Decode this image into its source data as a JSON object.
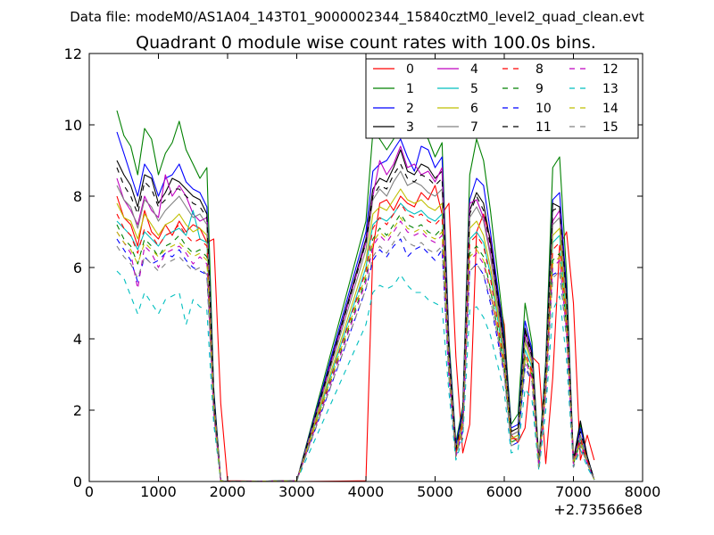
{
  "chart_data": {
    "type": "line",
    "suptitle": "Data file: modeM0/AS1A04_143T01_9000002344_15840cztM0_level2_quad_clean.evt",
    "title": "Quadrant 0 module wise count rates with 100.0s bins.",
    "xlabel": "",
    "ylabel": "",
    "x_offset_label": "+2.73566e8",
    "xlim": [
      0,
      8000
    ],
    "ylim": [
      0,
      12
    ],
    "xticks": [
      0,
      1000,
      2000,
      3000,
      4000,
      5000,
      6000,
      7000,
      8000
    ],
    "yticks": [
      0,
      2,
      4,
      6,
      8,
      10,
      12
    ],
    "x": [
      400,
      500,
      600,
      700,
      800,
      900,
      1000,
      1100,
      1200,
      1300,
      1400,
      1500,
      1600,
      1700,
      1800,
      1900,
      2000,
      3000,
      4000,
      4100,
      4200,
      4300,
      4400,
      4500,
      4600,
      4700,
      4800,
      4900,
      5000,
      5100,
      5200,
      5300,
      5400,
      5500,
      5600,
      5700,
      5800,
      5900,
      6000,
      6100,
      6200,
      6300,
      6400,
      6500,
      6600,
      6700,
      6800,
      6900,
      7000,
      7100,
      7200,
      7300
    ],
    "series": [
      {
        "name": "0",
        "color": "#ff0000",
        "dash": "solid",
        "values": [
          8.0,
          7.4,
          7.2,
          6.6,
          7.6,
          7.0,
          6.8,
          7.2,
          6.9,
          7.3,
          7.0,
          7.2,
          7.1,
          6.7,
          6.8,
          2.2,
          0.02,
          0.0,
          0.02,
          6.5,
          7.8,
          7.9,
          7.6,
          8.0,
          7.8,
          7.7,
          8.1,
          7.9,
          8.3,
          7.5,
          7.8,
          3.5,
          0.8,
          1.6,
          7.0,
          7.5,
          6.8,
          5.3,
          4.4,
          1.3,
          1.1,
          1.5,
          3.5,
          3.3,
          0.5,
          2.9,
          6.6,
          7.0,
          5.0,
          0.6,
          1.3,
          0.6
        ]
      },
      {
        "name": "1",
        "color": "#008000",
        "dash": "solid",
        "values": [
          10.4,
          9.7,
          9.4,
          8.6,
          9.9,
          9.6,
          8.6,
          9.2,
          9.5,
          10.1,
          9.3,
          8.9,
          8.5,
          8.8,
          2.6,
          0.02,
          0.0,
          0.02,
          7.3,
          9.8,
          9.6,
          9.3,
          9.6,
          10.3,
          9.8,
          10.3,
          9.8,
          9.6,
          9.1,
          9.5,
          4.0,
          1.1,
          2.1,
          8.6,
          9.6,
          9.0,
          7.6,
          5.9,
          4.2,
          1.6,
          1.9,
          5.0,
          3.9,
          0.6,
          3.4,
          8.8,
          9.1,
          5.8,
          0.6,
          1.6,
          0.7,
          0.05
        ]
      },
      {
        "name": "2",
        "color": "#0000ff",
        "dash": "solid",
        "values": [
          9.8,
          9.2,
          8.6,
          8.0,
          8.9,
          8.6,
          8.0,
          8.5,
          8.6,
          8.9,
          8.4,
          8.2,
          8.1,
          7.7,
          2.5,
          0.02,
          0.0,
          0.02,
          7.0,
          8.7,
          8.9,
          9.0,
          9.3,
          9.6,
          9.1,
          8.7,
          9.4,
          9.3,
          8.8,
          9.1,
          3.8,
          1.0,
          2.0,
          7.9,
          8.5,
          8.3,
          7.0,
          5.5,
          4.0,
          1.5,
          1.6,
          4.5,
          3.7,
          0.5,
          3.2,
          7.9,
          8.1,
          5.4,
          0.6,
          1.5,
          0.7,
          0.05
        ]
      },
      {
        "name": "3",
        "color": "#000000",
        "dash": "solid",
        "values": [
          9.0,
          8.6,
          8.3,
          7.7,
          8.6,
          8.5,
          7.8,
          8.1,
          8.5,
          8.4,
          8.2,
          8.0,
          7.9,
          7.5,
          2.4,
          0.02,
          0.0,
          0.02,
          6.8,
          8.2,
          8.5,
          8.4,
          8.8,
          9.3,
          8.7,
          8.6,
          8.9,
          8.8,
          8.5,
          8.7,
          3.7,
          0.9,
          1.9,
          7.6,
          8.1,
          7.8,
          6.7,
          5.3,
          3.9,
          1.4,
          1.5,
          4.3,
          3.6,
          0.5,
          3.1,
          7.8,
          7.7,
          5.2,
          0.6,
          1.7,
          0.7,
          0.05
        ]
      },
      {
        "name": "4",
        "color": "#bf00bf",
        "dash": "solid",
        "values": [
          8.5,
          7.9,
          7.6,
          7.2,
          8.0,
          7.6,
          7.4,
          8.6,
          8.0,
          8.3,
          8.0,
          7.5,
          7.3,
          7.4,
          2.3,
          0.02,
          0.0,
          0.02,
          6.7,
          8.0,
          9.0,
          8.6,
          8.9,
          9.4,
          8.8,
          8.9,
          8.6,
          8.7,
          8.4,
          8.8,
          3.6,
          0.9,
          1.8,
          7.8,
          7.9,
          7.4,
          6.4,
          5.1,
          3.7,
          1.3,
          1.4,
          4.1,
          3.5,
          0.5,
          3.0,
          7.3,
          7.6,
          5.0,
          0.6,
          1.3,
          0.6,
          0.05
        ]
      },
      {
        "name": "5",
        "color": "#00bfbf",
        "dash": "solid",
        "values": [
          7.3,
          7.1,
          6.9,
          6.5,
          7.0,
          6.8,
          6.6,
          6.9,
          7.0,
          7.1,
          6.9,
          7.6,
          6.8,
          6.7,
          2.1,
          0.02,
          0.0,
          0.02,
          6.0,
          7.2,
          7.4,
          7.3,
          7.5,
          7.8,
          7.6,
          7.5,
          7.6,
          7.4,
          7.3,
          7.5,
          3.3,
          0.8,
          1.6,
          6.8,
          7.0,
          6.7,
          5.8,
          4.6,
          3.4,
          1.2,
          1.3,
          3.7,
          3.2,
          0.4,
          2.8,
          6.7,
          6.9,
          4.6,
          0.5,
          1.2,
          0.6,
          0.05
        ]
      },
      {
        "name": "6",
        "color": "#bfbf00",
        "dash": "solid",
        "values": [
          7.8,
          7.4,
          7.3,
          6.8,
          7.5,
          7.2,
          6.9,
          7.2,
          7.3,
          7.5,
          7.2,
          7.0,
          7.1,
          6.9,
          2.2,
          0.02,
          0.0,
          0.02,
          6.2,
          7.5,
          7.7,
          7.6,
          7.9,
          8.2,
          7.9,
          7.8,
          7.9,
          7.7,
          7.6,
          7.8,
          3.4,
          0.8,
          1.7,
          7.1,
          7.3,
          6.9,
          6.0,
          4.8,
          3.5,
          1.2,
          1.3,
          3.9,
          3.3,
          0.5,
          2.9,
          6.9,
          7.1,
          4.8,
          0.5,
          1.3,
          0.6,
          0.05
        ]
      },
      {
        "name": "7",
        "color": "#808080",
        "dash": "solid",
        "values": [
          8.3,
          7.9,
          7.7,
          7.1,
          7.9,
          7.7,
          7.3,
          7.6,
          7.8,
          8.0,
          7.7,
          7.4,
          7.5,
          7.2,
          2.3,
          0.02,
          0.0,
          0.02,
          6.5,
          7.9,
          8.2,
          8.0,
          8.4,
          8.7,
          8.3,
          8.4,
          8.3,
          8.1,
          8.0,
          8.2,
          3.5,
          0.9,
          1.8,
          7.4,
          7.7,
          7.3,
          6.3,
          5.0,
          3.6,
          1.3,
          1.4,
          4.0,
          3.4,
          0.5,
          3.0,
          7.2,
          7.4,
          5.0,
          0.5,
          1.3,
          0.6,
          0.05
        ]
      },
      {
        "name": "8",
        "color": "#ff0000",
        "dash": "dashed",
        "values": [
          7.5,
          7.1,
          6.9,
          6.4,
          7.1,
          6.9,
          6.6,
          6.9,
          7.0,
          7.2,
          6.9,
          6.7,
          6.8,
          6.6,
          2.1,
          0.02,
          0.0,
          0.02,
          5.9,
          7.1,
          7.4,
          7.2,
          7.5,
          7.8,
          7.5,
          7.4,
          7.5,
          7.3,
          7.2,
          7.4,
          3.2,
          0.8,
          1.6,
          6.7,
          6.9,
          6.6,
          5.7,
          4.5,
          3.3,
          1.2,
          1.2,
          3.6,
          3.1,
          0.4,
          2.7,
          6.5,
          6.7,
          4.5,
          0.5,
          1.2,
          0.6,
          0.05
        ]
      },
      {
        "name": "9",
        "color": "#008000",
        "dash": "dashed",
        "values": [
          7.2,
          6.8,
          6.6,
          6.1,
          6.8,
          6.6,
          6.3,
          6.6,
          6.7,
          6.9,
          6.6,
          6.4,
          6.5,
          6.3,
          2.0,
          0.02,
          0.0,
          0.02,
          5.7,
          6.8,
          7.1,
          6.9,
          7.2,
          7.5,
          7.2,
          7.1,
          7.2,
          7.0,
          6.9,
          7.1,
          3.1,
          0.7,
          1.5,
          6.4,
          6.6,
          6.3,
          5.4,
          4.3,
          3.2,
          1.1,
          1.2,
          3.5,
          3.0,
          0.4,
          2.6,
          6.2,
          6.4,
          4.3,
          0.5,
          1.1,
          0.5,
          0.05
        ]
      },
      {
        "name": "10",
        "color": "#0000ff",
        "dash": "dashed",
        "values": [
          6.8,
          6.5,
          6.2,
          5.6,
          6.3,
          6.1,
          6.2,
          6.4,
          6.3,
          6.5,
          6.2,
          6.0,
          5.9,
          5.8,
          1.9,
          0.02,
          0.0,
          0.02,
          5.4,
          6.2,
          6.5,
          6.3,
          6.6,
          6.8,
          6.3,
          6.5,
          6.6,
          6.4,
          6.2,
          6.5,
          2.9,
          0.7,
          1.4,
          5.9,
          6.1,
          5.8,
          5.0,
          4.0,
          3.0,
          1.0,
          1.1,
          3.2,
          2.8,
          0.4,
          2.4,
          5.8,
          5.9,
          4.0,
          0.4,
          1.0,
          0.5,
          0.05
        ]
      },
      {
        "name": "11",
        "color": "#000000",
        "dash": "dashed",
        "values": [
          8.8,
          8.3,
          8.0,
          7.5,
          8.4,
          8.2,
          7.7,
          7.9,
          8.2,
          8.2,
          8.0,
          7.8,
          7.7,
          7.4,
          2.4,
          0.02,
          0.0,
          0.02,
          6.7,
          8.0,
          8.3,
          8.2,
          8.6,
          8.9,
          8.5,
          8.4,
          8.6,
          8.5,
          8.3,
          8.5,
          3.6,
          0.9,
          1.9,
          7.5,
          8.0,
          7.6,
          6.6,
          5.2,
          3.8,
          1.4,
          1.5,
          4.2,
          3.5,
          0.5,
          3.1,
          7.6,
          7.7,
          5.1,
          0.6,
          1.4,
          0.7,
          0.05
        ]
      },
      {
        "name": "12",
        "color": "#bf00bf",
        "dash": "dashed",
        "values": [
          7.0,
          6.7,
          6.4,
          5.4,
          6.6,
          6.4,
          6.0,
          6.4,
          6.5,
          6.6,
          6.4,
          6.1,
          6.3,
          6.1,
          1.9,
          0.02,
          0.0,
          0.02,
          5.6,
          6.6,
          6.9,
          6.7,
          7.0,
          7.3,
          7.0,
          6.9,
          7.0,
          6.8,
          6.7,
          6.9,
          3.0,
          0.7,
          1.5,
          6.2,
          6.4,
          6.1,
          5.3,
          4.2,
          3.1,
          1.1,
          1.2,
          3.4,
          2.9,
          0.4,
          2.5,
          6.0,
          6.2,
          4.2,
          0.5,
          1.1,
          0.5,
          0.05
        ]
      },
      {
        "name": "13",
        "color": "#00bfbf",
        "dash": "dashed",
        "values": [
          5.9,
          5.7,
          5.2,
          4.7,
          5.3,
          5.0,
          4.7,
          5.1,
          5.2,
          5.3,
          4.4,
          5.1,
          4.9,
          4.8,
          1.6,
          0.02,
          0.0,
          0.02,
          4.4,
          5.3,
          5.5,
          5.4,
          5.5,
          5.8,
          5.5,
          5.3,
          5.3,
          5.1,
          5.0,
          4.9,
          2.5,
          0.6,
          1.2,
          4.8,
          4.9,
          4.6,
          4.1,
          3.3,
          2.5,
          0.8,
          0.9,
          2.6,
          2.3,
          0.3,
          2.0,
          4.8,
          5.2,
          3.4,
          0.4,
          0.9,
          0.4,
          0.05
        ]
      },
      {
        "name": "14",
        "color": "#bfbf00",
        "dash": "dashed",
        "values": [
          7.0,
          6.7,
          6.5,
          6.1,
          6.7,
          6.5,
          6.3,
          6.5,
          6.6,
          6.7,
          6.5,
          6.3,
          6.4,
          6.2,
          2.0,
          0.02,
          0.0,
          0.02,
          5.8,
          6.7,
          7.0,
          6.8,
          7.1,
          7.4,
          7.1,
          7.0,
          7.1,
          6.9,
          6.8,
          7.0,
          3.1,
          0.7,
          1.5,
          6.3,
          6.5,
          6.2,
          5.4,
          4.3,
          3.2,
          1.1,
          1.2,
          3.5,
          3.0,
          0.4,
          2.6,
          6.1,
          6.3,
          4.3,
          0.5,
          1.1,
          0.5,
          0.05
        ]
      },
      {
        "name": "15",
        "color": "#808080",
        "dash": "dashed",
        "values": [
          6.6,
          6.3,
          6.1,
          5.7,
          6.3,
          6.1,
          5.9,
          6.1,
          6.2,
          6.3,
          6.1,
          5.9,
          6.0,
          5.8,
          1.9,
          0.02,
          0.0,
          0.02,
          5.4,
          6.3,
          6.6,
          6.4,
          6.7,
          7.0,
          6.7,
          6.6,
          6.7,
          6.5,
          6.4,
          6.6,
          2.9,
          0.7,
          1.4,
          5.9,
          6.1,
          5.8,
          5.1,
          4.1,
          3.0,
          1.0,
          1.1,
          3.3,
          2.8,
          0.4,
          2.4,
          5.7,
          5.9,
          4.0,
          0.4,
          1.0,
          0.5,
          0.05
        ]
      }
    ],
    "legend": {
      "placement": "top-right",
      "columns": 4
    }
  }
}
